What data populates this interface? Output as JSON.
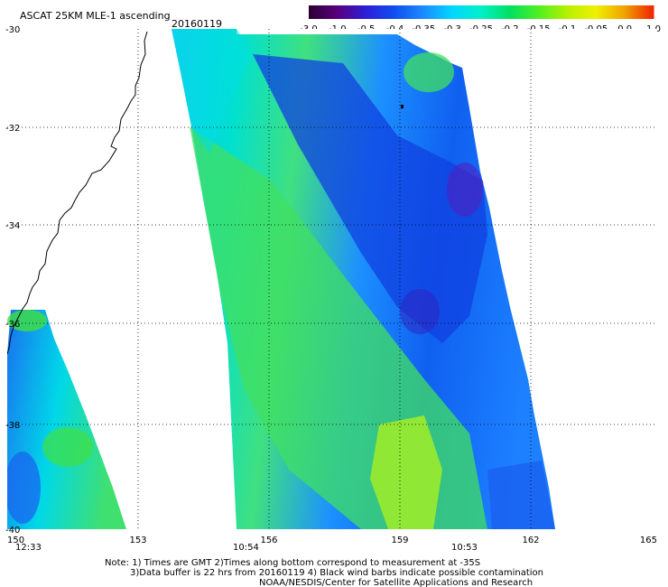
{
  "title": "ASCAT 25KM MLE-1 ascending",
  "date": "20160119",
  "colorbar": {
    "labels": [
      "-3.0",
      "-1.0",
      "-0.5",
      "-0.4",
      "-0.35",
      "-0.3",
      "-0.25",
      "-0.2",
      "-0.15",
      "-0.1",
      "-0.05",
      "0.0",
      "1.0"
    ],
    "colors": [
      "#2a0030",
      "#5a0080",
      "#2a20d8",
      "#1050f0",
      "#1c8cff",
      "#00d8ff",
      "#00f0c8",
      "#00e060",
      "#50f020",
      "#b8f000",
      "#f0f000",
      "#f0a000",
      "#f02000"
    ]
  },
  "map": {
    "lat_labels": [
      "-30",
      "-32",
      "-34",
      "-36",
      "-38",
      "-40"
    ],
    "lon_labels": [
      "150",
      "153",
      "156",
      "159",
      "162",
      "165"
    ],
    "times": [
      "12:33",
      "10:54",
      "10:53"
    ],
    "time_color": "#c00000"
  },
  "notes": {
    "line1": "Note: 1) Times are GMT 2)Times along bottom correspond to measurement at -35S",
    "line2": "3)Data buffer is 22 hrs from 20160119 4) Black wind barbs indicate possible contamination",
    "line3": "NOAA/NESDIS/Center for Satellite Applications and Research"
  }
}
